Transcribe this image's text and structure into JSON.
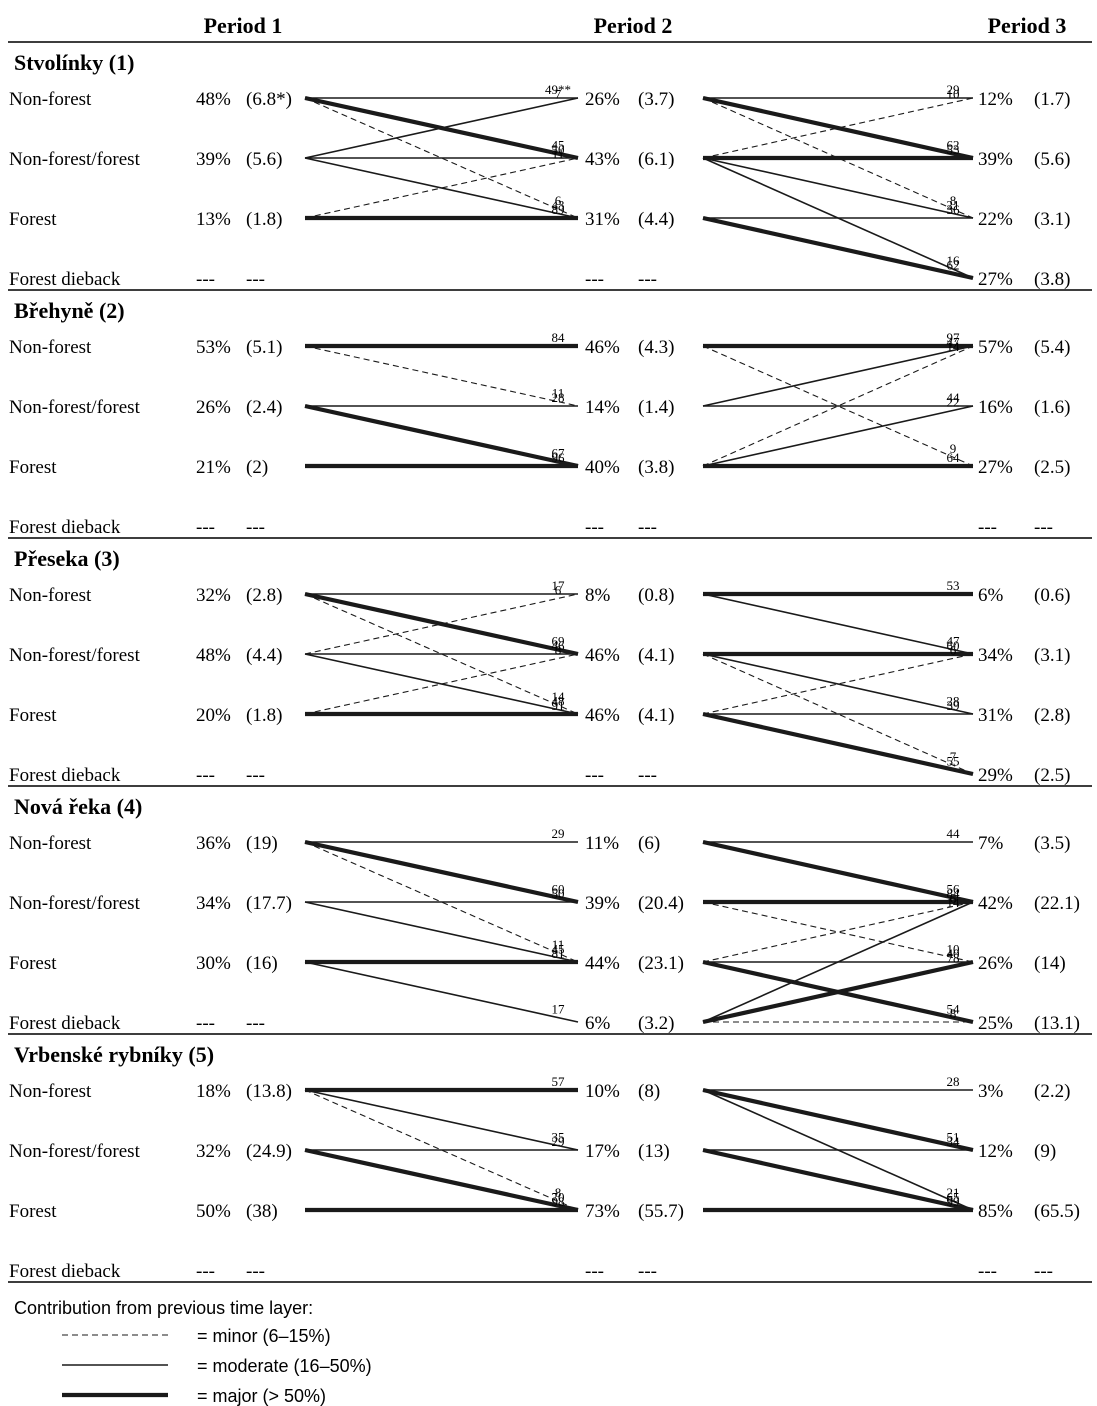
{
  "periods": [
    "Period 1",
    "Period 2",
    "Period 3"
  ],
  "categories": [
    "Non-forest",
    "Non-forest/forest",
    "Forest",
    "Forest dieback"
  ],
  "sites": [
    {
      "name": "Stvolínky (1)",
      "p1": [
        [
          "48%",
          "(6.8*)"
        ],
        [
          "39%",
          "(5.6)"
        ],
        [
          "13%",
          "(1.8)"
        ],
        [
          "---",
          "---"
        ]
      ],
      "p2": [
        [
          "26%",
          "(3.7)"
        ],
        [
          "43%",
          "(6.1)"
        ],
        [
          "31%",
          "(4.4)"
        ],
        [
          "---",
          "---"
        ]
      ],
      "p3": [
        [
          "12%",
          "(1.7)"
        ],
        [
          "39%",
          "(5.6)"
        ],
        [
          "22%",
          "(3.1)"
        ],
        [
          "27%",
          "(3.8)"
        ]
      ],
      "flows12": [
        {
          "from": 0,
          "to": 0,
          "label": "49**",
          "weight": "moderate"
        },
        {
          "from": 0,
          "to": 1,
          "label": "45",
          "weight": "major"
        },
        {
          "from": 0,
          "to": 2,
          "label": "6",
          "weight": "minor"
        },
        {
          "from": 1,
          "to": 0,
          "label": "7",
          "weight": "moderate"
        },
        {
          "from": 1,
          "to": 1,
          "label": "50",
          "weight": "moderate"
        },
        {
          "from": 1,
          "to": 2,
          "label": "43",
          "weight": "moderate"
        },
        {
          "from": 2,
          "to": 1,
          "label": "11",
          "weight": "minor"
        },
        {
          "from": 2,
          "to": 2,
          "label": "89",
          "weight": "major"
        }
      ],
      "flows23": [
        {
          "from": 0,
          "to": 0,
          "label": "29",
          "weight": "moderate"
        },
        {
          "from": 0,
          "to": 1,
          "label": "62",
          "weight": "major"
        },
        {
          "from": 0,
          "to": 2,
          "label": "8",
          "weight": "minor"
        },
        {
          "from": 1,
          "to": 0,
          "label": "10",
          "weight": "minor"
        },
        {
          "from": 1,
          "to": 1,
          "label": "53",
          "weight": "major"
        },
        {
          "from": 1,
          "to": 2,
          "label": "21",
          "weight": "moderate"
        },
        {
          "from": 1,
          "to": 3,
          "label": "16",
          "weight": "moderate"
        },
        {
          "from": 2,
          "to": 2,
          "label": "36",
          "weight": "moderate"
        },
        {
          "from": 2,
          "to": 3,
          "label": "62",
          "weight": "major"
        }
      ]
    },
    {
      "name": "Břehyně (2)",
      "p1": [
        [
          "53%",
          "(5.1)"
        ],
        [
          "26%",
          "(2.4)"
        ],
        [
          "21%",
          "(2)"
        ],
        [
          "---",
          "---"
        ]
      ],
      "p2": [
        [
          "46%",
          "(4.3)"
        ],
        [
          "14%",
          "(1.4)"
        ],
        [
          "40%",
          "(3.8)"
        ],
        [
          "---",
          "---"
        ]
      ],
      "p3": [
        [
          "57%",
          "(5.4)"
        ],
        [
          "16%",
          "(1.6)"
        ],
        [
          "27%",
          "(2.5)"
        ],
        [
          "---",
          "---"
        ]
      ],
      "flows12": [
        {
          "from": 0,
          "to": 0,
          "label": "84",
          "weight": "major"
        },
        {
          "from": 0,
          "to": 1,
          "label": "11",
          "weight": "minor"
        },
        {
          "from": 1,
          "to": 1,
          "label": "28",
          "weight": "moderate"
        },
        {
          "from": 1,
          "to": 2,
          "label": "67",
          "weight": "major"
        },
        {
          "from": 2,
          "to": 2,
          "label": "96",
          "weight": "major"
        }
      ],
      "flows23": [
        {
          "from": 0,
          "to": 0,
          "label": "97",
          "weight": "major"
        },
        {
          "from": 0,
          "to": 2,
          "label": "9",
          "weight": "minor"
        },
        {
          "from": 1,
          "to": 0,
          "label": "47",
          "weight": "moderate"
        },
        {
          "from": 1,
          "to": 1,
          "label": "44",
          "weight": "moderate"
        },
        {
          "from": 2,
          "to": 0,
          "label": "14",
          "weight": "minor"
        },
        {
          "from": 2,
          "to": 1,
          "label": "22",
          "weight": "moderate"
        },
        {
          "from": 2,
          "to": 2,
          "label": "64",
          "weight": "major"
        }
      ]
    },
    {
      "name": "Přeseka (3)",
      "p1": [
        [
          "32%",
          "(2.8)"
        ],
        [
          "48%",
          "(4.4)"
        ],
        [
          "20%",
          "(1.8)"
        ],
        [
          "---",
          "---"
        ]
      ],
      "p2": [
        [
          "8%",
          "(0.8)"
        ],
        [
          "46%",
          "(4.1)"
        ],
        [
          "46%",
          "(4.1)"
        ],
        [
          "---",
          "---"
        ]
      ],
      "p3": [
        [
          "6%",
          "(0.6)"
        ],
        [
          "34%",
          "(3.1)"
        ],
        [
          "31%",
          "(2.8)"
        ],
        [
          "29%",
          "(2.5)"
        ]
      ],
      "flows12": [
        {
          "from": 0,
          "to": 0,
          "label": "17",
          "weight": "moderate"
        },
        {
          "from": 0,
          "to": 1,
          "label": "69",
          "weight": "major"
        },
        {
          "from": 0,
          "to": 2,
          "label": "14",
          "weight": "minor"
        },
        {
          "from": 1,
          "to": 0,
          "label": "6",
          "weight": "minor"
        },
        {
          "from": 1,
          "to": 1,
          "label": "46",
          "weight": "moderate"
        },
        {
          "from": 1,
          "to": 2,
          "label": "48",
          "weight": "moderate"
        },
        {
          "from": 2,
          "to": 1,
          "label": "8",
          "weight": "minor"
        },
        {
          "from": 2,
          "to": 2,
          "label": "91",
          "weight": "major"
        }
      ],
      "flows23": [
        {
          "from": 0,
          "to": 0,
          "label": "53",
          "weight": "major"
        },
        {
          "from": 0,
          "to": 1,
          "label": "47",
          "weight": "moderate"
        },
        {
          "from": 1,
          "to": 1,
          "label": "60",
          "weight": "major"
        },
        {
          "from": 1,
          "to": 2,
          "label": "28",
          "weight": "moderate"
        },
        {
          "from": 1,
          "to": 3,
          "label": "7",
          "weight": "minor"
        },
        {
          "from": 2,
          "to": 1,
          "label": "6",
          "weight": "minor"
        },
        {
          "from": 2,
          "to": 2,
          "label": "39",
          "weight": "moderate"
        },
        {
          "from": 2,
          "to": 3,
          "label": "55",
          "weight": "major"
        }
      ]
    },
    {
      "name": "Nová řeka (4)",
      "p1": [
        [
          "36%",
          "(19)"
        ],
        [
          "34%",
          "(17.7)"
        ],
        [
          "30%",
          "(16)"
        ],
        [
          "---",
          "---"
        ]
      ],
      "p2": [
        [
          "11%",
          "(6)"
        ],
        [
          "39%",
          "(20.4)"
        ],
        [
          "44%",
          "(23.1)"
        ],
        [
          "6%",
          "(3.2)"
        ]
      ],
      "p3": [
        [
          "7%",
          "(3.5)"
        ],
        [
          "42%",
          "(22.1)"
        ],
        [
          "26%",
          "(14)"
        ],
        [
          "25%",
          "(13.1)"
        ]
      ],
      "flows12": [
        {
          "from": 0,
          "to": 0,
          "label": "29",
          "weight": "moderate"
        },
        {
          "from": 0,
          "to": 1,
          "label": "60",
          "weight": "major"
        },
        {
          "from": 0,
          "to": 2,
          "label": "11",
          "weight": "minor"
        },
        {
          "from": 1,
          "to": 1,
          "label": "50",
          "weight": "moderate"
        },
        {
          "from": 1,
          "to": 2,
          "label": "45",
          "weight": "moderate"
        },
        {
          "from": 2,
          "to": 2,
          "label": "81",
          "weight": "major"
        },
        {
          "from": 2,
          "to": 3,
          "label": "17",
          "weight": "moderate"
        }
      ],
      "flows23": [
        {
          "from": 0,
          "to": 0,
          "label": "44",
          "weight": "moderate"
        },
        {
          "from": 0,
          "to": 1,
          "label": "56",
          "weight": "major"
        },
        {
          "from": 1,
          "to": 1,
          "label": "84",
          "weight": "major"
        },
        {
          "from": 1,
          "to": 2,
          "label": "10",
          "weight": "minor"
        },
        {
          "from": 2,
          "to": 1,
          "label": "6",
          "weight": "minor"
        },
        {
          "from": 2,
          "to": 2,
          "label": "40",
          "weight": "moderate"
        },
        {
          "from": 2,
          "to": 3,
          "label": "54",
          "weight": "major"
        },
        {
          "from": 3,
          "to": 1,
          "label": "14",
          "weight": "moderate"
        },
        {
          "from": 3,
          "to": 2,
          "label": "78",
          "weight": "major"
        },
        {
          "from": 3,
          "to": 3,
          "label": "8",
          "weight": "minor"
        }
      ]
    },
    {
      "name": "Vrbenské rybníky (5)",
      "p1": [
        [
          "18%",
          "(13.8)"
        ],
        [
          "32%",
          "(24.9)"
        ],
        [
          "50%",
          "(38)"
        ],
        [
          "---",
          "---"
        ]
      ],
      "p2": [
        [
          "10%",
          "(8)"
        ],
        [
          "17%",
          "(13)"
        ],
        [
          "73%",
          "(55.7)"
        ],
        [
          "---",
          "---"
        ]
      ],
      "p3": [
        [
          "3%",
          "(2.2)"
        ],
        [
          "12%",
          "(9)"
        ],
        [
          "85%",
          "(65.5)"
        ],
        [
          "---",
          "---"
        ]
      ],
      "flows12": [
        {
          "from": 0,
          "to": 0,
          "label": "57",
          "weight": "major"
        },
        {
          "from": 0,
          "to": 1,
          "label": "35",
          "weight": "moderate"
        },
        {
          "from": 0,
          "to": 2,
          "label": "8",
          "weight": "minor"
        },
        {
          "from": 1,
          "to": 1,
          "label": "29",
          "weight": "moderate"
        },
        {
          "from": 1,
          "to": 2,
          "label": "70",
          "weight": "major"
        },
        {
          "from": 2,
          "to": 2,
          "label": "98",
          "weight": "major"
        }
      ],
      "flows23": [
        {
          "from": 0,
          "to": 0,
          "label": "28",
          "weight": "moderate"
        },
        {
          "from": 0,
          "to": 1,
          "label": "51",
          "weight": "major"
        },
        {
          "from": 0,
          "to": 2,
          "label": "21",
          "weight": "moderate"
        },
        {
          "from": 1,
          "to": 1,
          "label": "34",
          "weight": "moderate"
        },
        {
          "from": 1,
          "to": 2,
          "label": "65",
          "weight": "major"
        },
        {
          "from": 2,
          "to": 2,
          "label": "99",
          "weight": "major"
        }
      ]
    }
  ],
  "legend": {
    "title": "Contribution from previous time layer:",
    "items": [
      {
        "weight": "minor",
        "text": "= minor (6–15%)"
      },
      {
        "weight": "moderate",
        "text": "= moderate (16–50%)"
      },
      {
        "weight": "major",
        "text": "= major (> 50%)"
      }
    ]
  }
}
